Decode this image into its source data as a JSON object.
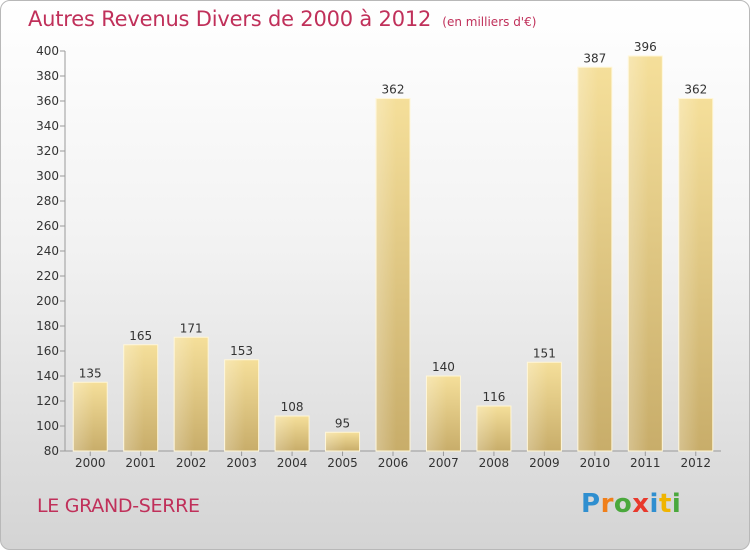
{
  "header": {
    "title": "Autres Revenus Divers de 2000 à 2012",
    "unit": "(en milliers d'€)"
  },
  "footer": {
    "commune": "LE GRAND-SERRE",
    "logo": "Proxiti"
  },
  "colors": {
    "title": "#c0305a",
    "bar_light": "#f5df9a",
    "bar_dark": "#c8ad6a",
    "logo": [
      "#2f8fd0",
      "#f07f1a",
      "#4aa83c",
      "#e8392c",
      "#2f8fd0",
      "#f0b400",
      "#4aa83c"
    ]
  },
  "chart_data": {
    "type": "bar",
    "categories": [
      "2000",
      "2001",
      "2002",
      "2003",
      "2004",
      "2005",
      "2006",
      "2007",
      "2008",
      "2009",
      "2010",
      "2011",
      "2012"
    ],
    "values": [
      135,
      165,
      171,
      153,
      108,
      95,
      362,
      140,
      116,
      151,
      387,
      396,
      362
    ],
    "title": "Autres Revenus Divers de 2000 à 2012",
    "ylim": [
      80,
      400
    ],
    "yticks": [
      80,
      100,
      120,
      140,
      160,
      180,
      200,
      220,
      240,
      260,
      280,
      300,
      320,
      340,
      360,
      380,
      400
    ],
    "grid": false,
    "data_labels": true
  }
}
